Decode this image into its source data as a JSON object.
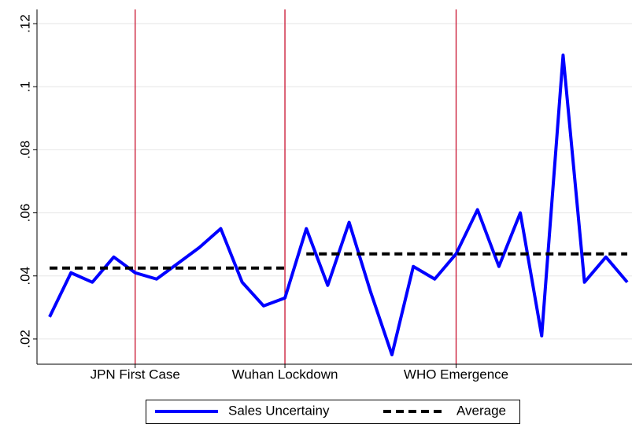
{
  "chart_data": {
    "type": "line",
    "categories": [
      null,
      null,
      null,
      null,
      "JPN First Case",
      null,
      null,
      null,
      null,
      null,
      null,
      "Wuhan Lockdown",
      null,
      null,
      null,
      null,
      null,
      null,
      null,
      "WHO Emergence",
      null,
      null,
      null,
      null,
      null,
      null,
      null,
      null
    ],
    "series": [
      {
        "name": "Sales Uncertainy",
        "color": "#0000ff",
        "style": "solid",
        "values": [
          0.027,
          0.041,
          0.038,
          0.046,
          0.041,
          0.039,
          0.044,
          0.049,
          0.055,
          0.038,
          0.0305,
          0.033,
          0.055,
          0.037,
          0.057,
          0.035,
          0.015,
          0.043,
          0.039,
          0.047,
          0.061,
          0.043,
          0.06,
          0.021,
          0.11,
          0.038,
          0.046,
          0.038
        ]
      },
      {
        "name": "Average",
        "color": "#000000",
        "style": "dashed",
        "values": [
          0.0425,
          0.0425,
          0.0425,
          0.0425,
          0.0425,
          0.0425,
          0.0425,
          0.0425,
          0.0425,
          0.0425,
          0.0425,
          0.0425,
          0.047,
          0.047,
          0.047,
          0.047,
          0.047,
          0.047,
          0.047,
          0.047,
          0.047,
          0.047,
          0.047,
          0.047,
          0.047,
          0.047,
          0.047,
          0.047
        ]
      }
    ],
    "ylim": [
      0.012,
      0.1245
    ],
    "yticks": [
      {
        "value": 0.02,
        "label": ".02"
      },
      {
        "value": 0.04,
        "label": ".04"
      },
      {
        "value": 0.06,
        "label": ".06"
      },
      {
        "value": 0.08,
        "label": ".08"
      },
      {
        "value": 0.1,
        "label": ".1"
      },
      {
        "value": 0.12,
        "label": ".12"
      }
    ],
    "grid": true,
    "event_line_color": "#c8102e",
    "legend": "bottom"
  }
}
